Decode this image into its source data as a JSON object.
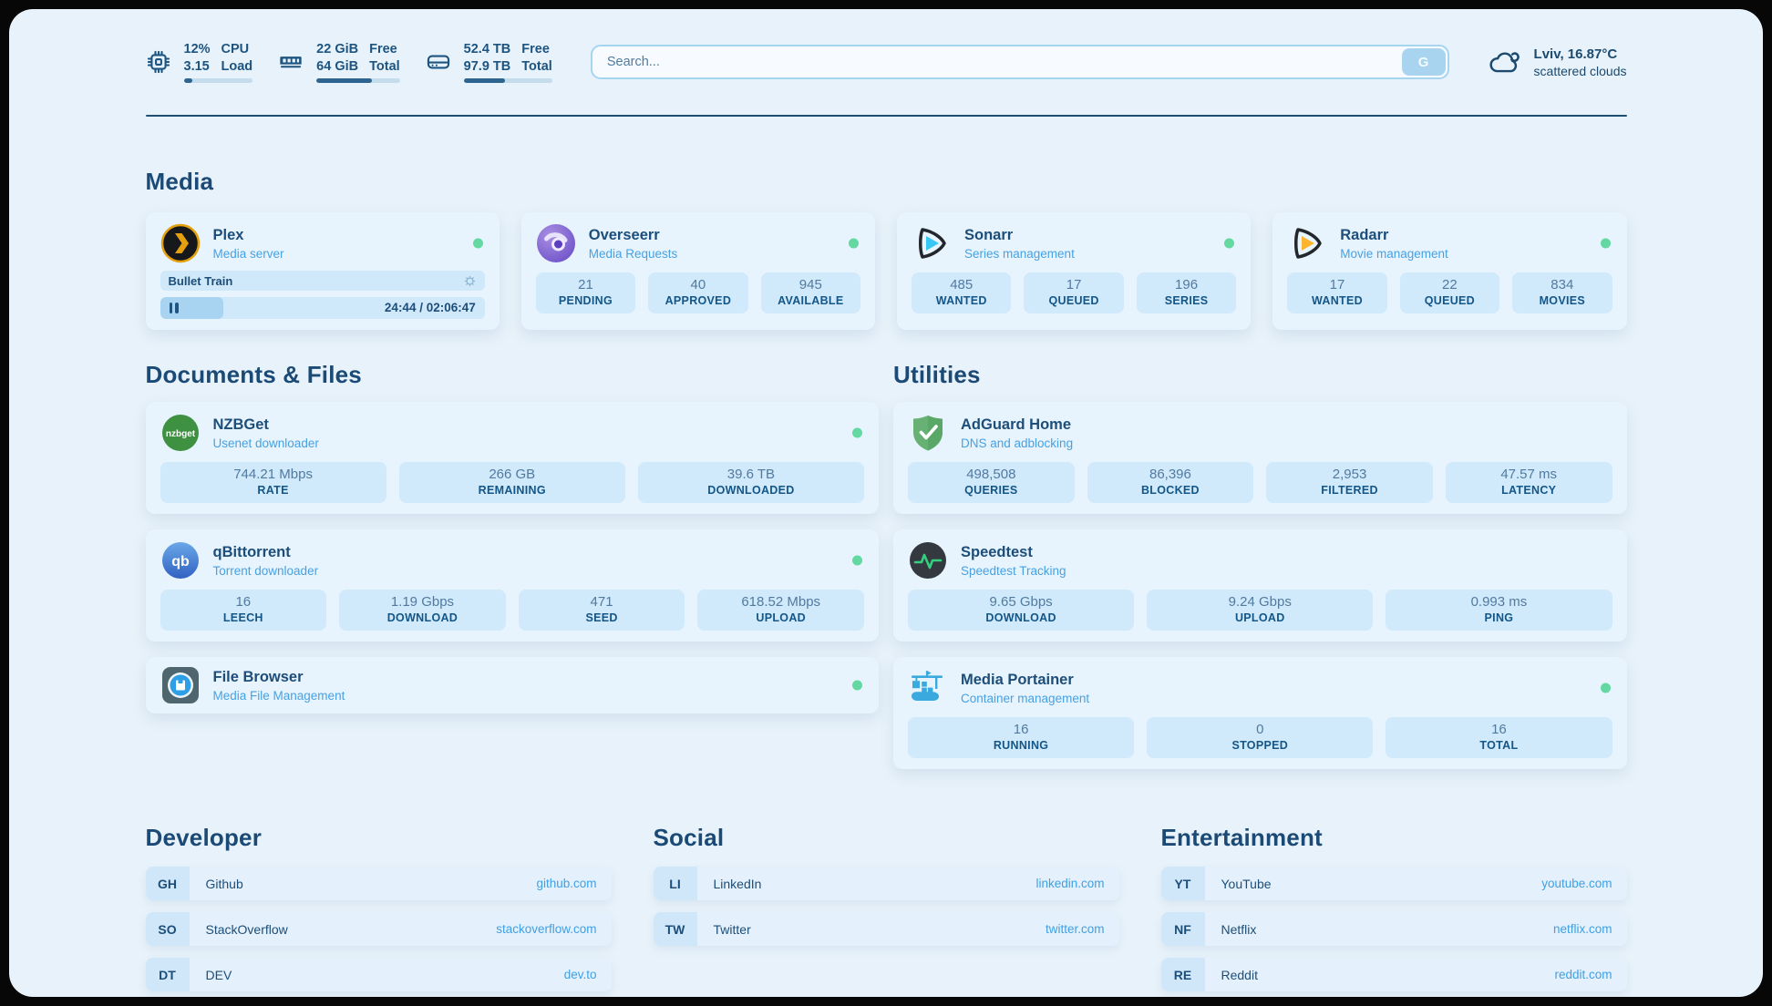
{
  "colors": {
    "accent_navy": "#1c4e79",
    "subtitle_blue": "#46a2e2",
    "link_blue": "#3fa0e3",
    "status_green": "#63d9a1",
    "tile_blue": "#d0e9fb",
    "progress_fill": "#2e6590"
  },
  "topbar": {
    "stats": [
      {
        "icon": "cpu-icon",
        "value_top": "12%",
        "value_bottom": "3.15",
        "label_top": "CPU",
        "label_bottom": "Load",
        "progress_pct": 13
      },
      {
        "icon": "ram-icon",
        "value_top": "22 GiB",
        "value_bottom": "64 GiB",
        "label_top": "Free",
        "label_bottom": "Total",
        "progress_pct": 66
      },
      {
        "icon": "disk-icon",
        "value_top": "52.4 TB",
        "value_bottom": "97.9 TB",
        "label_top": "Free",
        "label_bottom": "Total",
        "progress_pct": 47
      }
    ],
    "search": {
      "placeholder": "Search...",
      "button_label": "G"
    },
    "weather": {
      "location_temperature": "Lviv, 16.87°C",
      "condition": "scattered clouds"
    }
  },
  "media": {
    "title": "Media",
    "plex": {
      "name": "Plex",
      "subtitle": "Media server",
      "online": true,
      "now_playing": "Bullet Train",
      "elapsed_total": "24:44 / 02:06:47",
      "progress_pct": 19.5
    },
    "overseerr": {
      "name": "Overseerr",
      "subtitle": "Media Requests",
      "online": true,
      "stats": [
        {
          "value": "21",
          "label": "PENDING"
        },
        {
          "value": "40",
          "label": "APPROVED"
        },
        {
          "value": "945",
          "label": "AVAILABLE"
        }
      ]
    },
    "sonarr": {
      "name": "Sonarr",
      "subtitle": "Series management",
      "online": true,
      "stats": [
        {
          "value": "485",
          "label": "WANTED"
        },
        {
          "value": "17",
          "label": "QUEUED"
        },
        {
          "value": "196",
          "label": "SERIES"
        }
      ]
    },
    "radarr": {
      "name": "Radarr",
      "subtitle": "Movie management",
      "online": true,
      "stats": [
        {
          "value": "17",
          "label": "WANTED"
        },
        {
          "value": "22",
          "label": "QUEUED"
        },
        {
          "value": "834",
          "label": "MOVIES"
        }
      ]
    }
  },
  "documents": {
    "title": "Documents & Files",
    "nzbget": {
      "name": "NZBGet",
      "subtitle": "Usenet downloader",
      "online": true,
      "icon_text": "nzbget",
      "stats": [
        {
          "value": "744.21 Mbps",
          "label": "RATE"
        },
        {
          "value": "266 GB",
          "label": "REMAINING"
        },
        {
          "value": "39.6 TB",
          "label": "DOWNLOADED"
        }
      ]
    },
    "qbittorrent": {
      "name": "qBittorrent",
      "subtitle": "Torrent downloader",
      "online": true,
      "icon_text": "qb",
      "stats": [
        {
          "value": "16",
          "label": "LEECH"
        },
        {
          "value": "1.19 Gbps",
          "label": "DOWNLOAD"
        },
        {
          "value": "471",
          "label": "SEED"
        },
        {
          "value": "618.52 Mbps",
          "label": "UPLOAD"
        }
      ]
    },
    "filebrowser": {
      "name": "File Browser",
      "subtitle": "Media File Management",
      "online": true
    }
  },
  "utilities": {
    "title": "Utilities",
    "adguard": {
      "name": "AdGuard Home",
      "subtitle": "DNS and adblocking",
      "stats": [
        {
          "value": "498,508",
          "label": "QUERIES"
        },
        {
          "value": "86,396",
          "label": "BLOCKED"
        },
        {
          "value": "2,953",
          "label": "FILTERED"
        },
        {
          "value": "47.57 ms",
          "label": "LATENCY"
        }
      ]
    },
    "speedtest": {
      "name": "Speedtest",
      "subtitle": "Speedtest Tracking",
      "stats": [
        {
          "value": "9.65 Gbps",
          "label": "DOWNLOAD"
        },
        {
          "value": "9.24 Gbps",
          "label": "UPLOAD"
        },
        {
          "value": "0.993 ms",
          "label": "PING"
        }
      ]
    },
    "portainer": {
      "name": "Media Portainer",
      "subtitle": "Container management",
      "online": true,
      "stats": [
        {
          "value": "16",
          "label": "RUNNING"
        },
        {
          "value": "0",
          "label": "STOPPED"
        },
        {
          "value": "16",
          "label": "TOTAL"
        }
      ]
    }
  },
  "links": {
    "developer": {
      "title": "Developer",
      "items": [
        {
          "badge": "GH",
          "name": "Github",
          "url": "github.com"
        },
        {
          "badge": "SO",
          "name": "StackOverflow",
          "url": "stackoverflow.com"
        },
        {
          "badge": "DT",
          "name": "DEV",
          "url": "dev.to"
        }
      ]
    },
    "social": {
      "title": "Social",
      "items": [
        {
          "badge": "LI",
          "name": "LinkedIn",
          "url": "linkedin.com"
        },
        {
          "badge": "TW",
          "name": "Twitter",
          "url": "twitter.com"
        }
      ]
    },
    "entertainment": {
      "title": "Entertainment",
      "items": [
        {
          "badge": "YT",
          "name": "YouTube",
          "url": "youtube.com"
        },
        {
          "badge": "NF",
          "name": "Netflix",
          "url": "netflix.com"
        },
        {
          "badge": "RE",
          "name": "Reddit",
          "url": "reddit.com"
        }
      ]
    }
  }
}
